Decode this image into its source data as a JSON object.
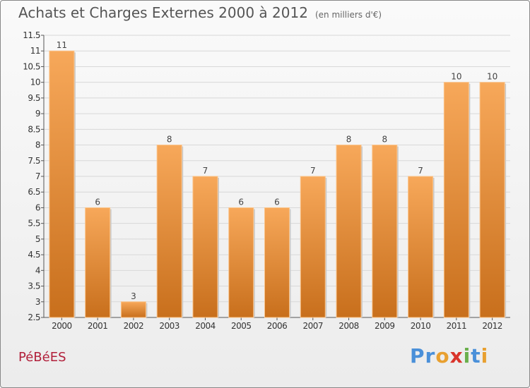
{
  "header": {
    "title": "Achats et Charges Externes 2000 à 2012",
    "subtitle": "(en milliers d'€)"
  },
  "footer": {
    "commune": "PéBéES",
    "brand_letters": [
      {
        "ch": "P",
        "color": "#4a90d9"
      },
      {
        "ch": "r",
        "color": "#4a90d9"
      },
      {
        "ch": "o",
        "color": "#e8a030"
      },
      {
        "ch": "x",
        "color": "#d9342b"
      },
      {
        "ch": "i",
        "color": "#6ab04c"
      },
      {
        "ch": "t",
        "color": "#4a90d9"
      },
      {
        "ch": "i",
        "color": "#e8a030"
      }
    ]
  },
  "chart_data": {
    "type": "bar",
    "title": "Achats et Charges Externes 2000 à 2012",
    "subtitle": "(en milliers d'€)",
    "categories": [
      "2000",
      "2001",
      "2002",
      "2003",
      "2004",
      "2005",
      "2006",
      "2007",
      "2008",
      "2009",
      "2010",
      "2011",
      "2012"
    ],
    "values": [
      11,
      6,
      3,
      8,
      7,
      6,
      6,
      7,
      8,
      8,
      7,
      10,
      10
    ],
    "ylim": [
      2.5,
      11.5
    ],
    "yticks": [
      "2.5",
      "3",
      "3.5",
      "4",
      "4.5",
      "5",
      "5.5",
      "6",
      "6.5",
      "7",
      "7.5",
      "8",
      "8.5",
      "9",
      "9.5",
      "10",
      "10.5",
      "11",
      "11.5"
    ],
    "grid": true,
    "bar_color_top": "#f7a85a",
    "bar_color_bottom": "#c86f1c",
    "grid_color": "#d8d8d8"
  }
}
